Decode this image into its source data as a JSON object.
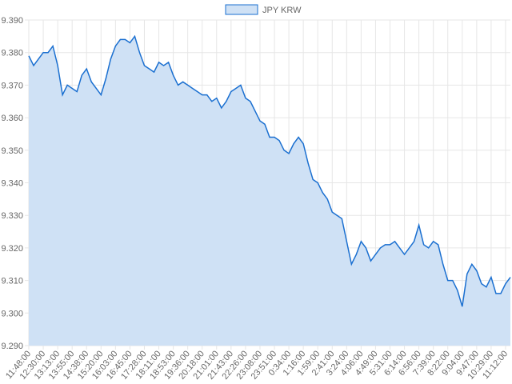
{
  "chart_data": {
    "type": "area",
    "series": [
      {
        "name": "JPY KRW",
        "color": "#1a6fd0",
        "fill": "#cfe1f5",
        "values": [
          9.379,
          9.376,
          9.378,
          9.38,
          9.38,
          9.382,
          9.376,
          9.367,
          9.37,
          9.369,
          9.368,
          9.373,
          9.375,
          9.371,
          9.369,
          9.367,
          9.372,
          9.378,
          9.382,
          9.384,
          9.384,
          9.383,
          9.385,
          9.38,
          9.376,
          9.375,
          9.374,
          9.377,
          9.376,
          9.377,
          9.373,
          9.37,
          9.371,
          9.37,
          9.369,
          9.368,
          9.367,
          9.367,
          9.365,
          9.366,
          9.363,
          9.365,
          9.368,
          9.369,
          9.37,
          9.366,
          9.365,
          9.362,
          9.359,
          9.358,
          9.354,
          9.354,
          9.353,
          9.35,
          9.349,
          9.352,
          9.354,
          9.352,
          9.346,
          9.341,
          9.34,
          9.337,
          9.335,
          9.331,
          9.33,
          9.329,
          9.322,
          9.315,
          9.318,
          9.322,
          9.32,
          9.316,
          9.318,
          9.32,
          9.321,
          9.321,
          9.322,
          9.32,
          9.318,
          9.32,
          9.322,
          9.327,
          9.321,
          9.32,
          9.322,
          9.321,
          9.315,
          9.31,
          9.31,
          9.307,
          9.302,
          9.312,
          9.315,
          9.313,
          9.309,
          9.308,
          9.311,
          9.306,
          9.306,
          9.309,
          9.311
        ]
      }
    ],
    "categories": [
      "11:48:00",
      null,
      null,
      "12:30:00",
      null,
      null,
      "13:13:00",
      null,
      null,
      "13:55:00",
      null,
      null,
      "14:38:00",
      null,
      null,
      "15:20:00",
      null,
      null,
      "16:03:00",
      null,
      null,
      "16:45:00",
      null,
      null,
      "17:28:00",
      null,
      null,
      "18:11:00",
      null,
      null,
      "18:53:00",
      null,
      null,
      "19:36:00",
      null,
      null,
      "20:18:00",
      null,
      null,
      "21:01:00",
      null,
      null,
      "21:43:00",
      null,
      null,
      "22:26:00",
      null,
      null,
      "23:08:00",
      null,
      null,
      "23:51:00",
      null,
      null,
      "0:34:00",
      null,
      null,
      "1:16:00",
      null,
      null,
      "1:59:00",
      null,
      null,
      "2:41:00",
      null,
      null,
      "3:24:00",
      null,
      null,
      "4:06:00",
      null,
      null,
      "4:49:00",
      null,
      null,
      "5:31:00",
      null,
      null,
      "6:14:00",
      null,
      null,
      "6:56:00",
      null,
      null,
      "7:39:00",
      null,
      null,
      "8:22:00",
      null,
      null,
      "9:04:00",
      null,
      null,
      "9:47:00",
      null,
      null,
      "10:29:00",
      null,
      null,
      "11:12:00",
      null
    ],
    "ylim": [
      9.29,
      9.39
    ],
    "yticks": [
      {
        "value": 9.29,
        "label": "9.290"
      },
      {
        "value": 9.3,
        "label": "9.300"
      },
      {
        "value": 9.31,
        "label": "9.310"
      },
      {
        "value": 9.32,
        "label": "9.320"
      },
      {
        "value": 9.33,
        "label": "9.330"
      },
      {
        "value": 9.34,
        "label": "9.340"
      },
      {
        "value": 9.35,
        "label": "9.350"
      },
      {
        "value": 9.36,
        "label": "9.360"
      },
      {
        "value": 9.37,
        "label": "9.370"
      },
      {
        "value": 9.38,
        "label": "9.380"
      },
      {
        "value": 9.39,
        "label": "9.390"
      }
    ],
    "grid": true,
    "legend": "top"
  }
}
